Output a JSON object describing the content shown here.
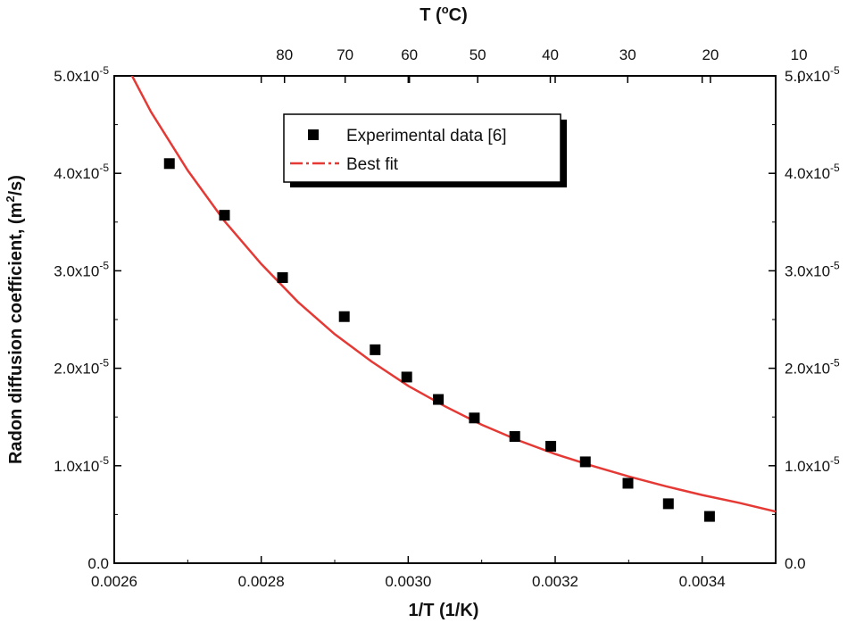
{
  "chart_data": {
    "type": "scatter",
    "xlabel": "1/T (1/K)",
    "ylabel": "Radon diffusion coefficient, (m²/s)",
    "top_axis_label": "T (°C)",
    "xlim": [
      0.0026,
      0.0035
    ],
    "ylim": [
      0,
      5e-05
    ],
    "x_ticks": [
      0.0026,
      0.0028,
      0.003,
      0.0032,
      0.0034
    ],
    "x_tick_labels": [
      "0.0026",
      "0.0028",
      "0.0030",
      "0.0032",
      "0.0034"
    ],
    "y_ticks": [
      0,
      1e-05,
      2e-05,
      3e-05,
      4e-05,
      5e-05
    ],
    "y_tick_labels": [
      "0.0",
      "1.0x10",
      "2.0x10",
      "3.0x10",
      "4.0x10",
      "5.0x10"
    ],
    "y_tick_exponents": [
      "",
      "-5",
      "-5",
      "-5",
      "-5",
      "-5"
    ],
    "top_ticks_celsius": [
      80,
      70,
      60,
      50,
      40,
      30,
      20,
      10
    ],
    "top_tick_labels": [
      "80",
      "70",
      "60",
      "50",
      "40",
      "30",
      "20",
      "10"
    ],
    "legend": {
      "position": "top-center",
      "experimental_label": "Experimental data [6]",
      "fit_label": "Best fit"
    },
    "series": [
      {
        "name": "Experimental data [6]",
        "kind": "scatter",
        "x": [
          0.002675,
          0.00275,
          0.002829,
          0.002913,
          0.002955,
          0.002998,
          0.003041,
          0.00309,
          0.003145,
          0.003194,
          0.003241,
          0.003299,
          0.003354,
          0.00341
        ],
        "y": [
          4.1e-05,
          3.57e-05,
          2.93e-05,
          2.53e-05,
          2.19e-05,
          1.91e-05,
          1.68e-05,
          1.49e-05,
          1.3e-05,
          1.2e-05,
          1.04e-05,
          8.2e-06,
          6.1e-06,
          4.8e-06
        ]
      },
      {
        "name": "Best fit",
        "kind": "line",
        "color": "#e53935",
        "x": [
          0.00262,
          0.00265,
          0.0027,
          0.00275,
          0.0028,
          0.00285,
          0.0029,
          0.00295,
          0.003,
          0.00305,
          0.0031,
          0.00315,
          0.0032,
          0.00325,
          0.0033,
          0.00335,
          0.0034,
          0.00345,
          0.0035
        ],
        "y": [
          5.06e-05,
          4.63e-05,
          4.03e-05,
          3.51e-05,
          3.07e-05,
          2.68e-05,
          2.35e-05,
          2.07e-05,
          1.82e-05,
          1.61e-05,
          1.42e-05,
          1.26e-05,
          1.12e-05,
          1e-05,
          8.9e-06,
          7.9e-06,
          7e-06,
          6.2e-06,
          5.3e-06
        ]
      }
    ],
    "colors": {
      "fit": "#e53935",
      "marker": "#000000",
      "frame": "#000000"
    }
  }
}
